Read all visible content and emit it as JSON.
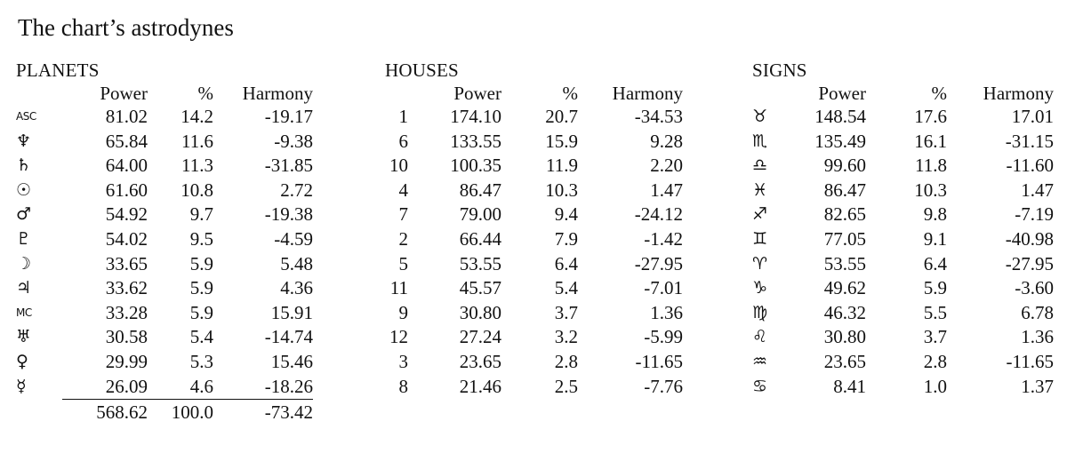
{
  "title": "The chart’s astrodynes",
  "columns": {
    "power": "Power",
    "percent": "%",
    "harmony": "Harmony"
  },
  "planets": {
    "heading": "PLANETS",
    "rows": [
      {
        "symbol": "ASC",
        "icon": "ascendant-icon",
        "power": "81.02",
        "percent": "14.2",
        "harmony": "-19.17"
      },
      {
        "symbol": "♆",
        "icon": "neptune-icon",
        "power": "65.84",
        "percent": "11.6",
        "harmony": "-9.38"
      },
      {
        "symbol": "♄",
        "icon": "saturn-icon",
        "power": "64.00",
        "percent": "11.3",
        "harmony": "-31.85"
      },
      {
        "symbol": "☉",
        "icon": "sun-icon",
        "power": "61.60",
        "percent": "10.8",
        "harmony": "2.72"
      },
      {
        "symbol": "♂",
        "icon": "mars-icon",
        "power": "54.92",
        "percent": "9.7",
        "harmony": "-19.38"
      },
      {
        "symbol": "♇",
        "icon": "pluto-icon",
        "power": "54.02",
        "percent": "9.5",
        "harmony": "-4.59"
      },
      {
        "symbol": "☽",
        "icon": "moon-icon",
        "power": "33.65",
        "percent": "5.9",
        "harmony": "5.48"
      },
      {
        "symbol": "♃",
        "icon": "jupiter-icon",
        "power": "33.62",
        "percent": "5.9",
        "harmony": "4.36"
      },
      {
        "symbol": "MC",
        "icon": "midheaven-icon",
        "power": "33.28",
        "percent": "5.9",
        "harmony": "15.91"
      },
      {
        "symbol": "♅",
        "icon": "uranus-icon",
        "power": "30.58",
        "percent": "5.4",
        "harmony": "-14.74"
      },
      {
        "symbol": "♀",
        "icon": "venus-icon",
        "power": "29.99",
        "percent": "5.3",
        "harmony": "15.46"
      },
      {
        "symbol": "☿",
        "icon": "mercury-icon",
        "power": "26.09",
        "percent": "4.6",
        "harmony": "-18.26"
      }
    ],
    "totals": {
      "power": "568.62",
      "percent": "100.0",
      "harmony": "-73.42"
    }
  },
  "houses": {
    "heading": "HOUSES",
    "rows": [
      {
        "house": "1",
        "power": "174.10",
        "percent": "20.7",
        "harmony": "-34.53"
      },
      {
        "house": "6",
        "power": "133.55",
        "percent": "15.9",
        "harmony": "9.28"
      },
      {
        "house": "10",
        "power": "100.35",
        "percent": "11.9",
        "harmony": "2.20"
      },
      {
        "house": "4",
        "power": "86.47",
        "percent": "10.3",
        "harmony": "1.47"
      },
      {
        "house": "7",
        "power": "79.00",
        "percent": "9.4",
        "harmony": "-24.12"
      },
      {
        "house": "2",
        "power": "66.44",
        "percent": "7.9",
        "harmony": "-1.42"
      },
      {
        "house": "5",
        "power": "53.55",
        "percent": "6.4",
        "harmony": "-27.95"
      },
      {
        "house": "11",
        "power": "45.57",
        "percent": "5.4",
        "harmony": "-7.01"
      },
      {
        "house": "9",
        "power": "30.80",
        "percent": "3.7",
        "harmony": "1.36"
      },
      {
        "house": "12",
        "power": "27.24",
        "percent": "3.2",
        "harmony": "-5.99"
      },
      {
        "house": "3",
        "power": "23.65",
        "percent": "2.8",
        "harmony": "-11.65"
      },
      {
        "house": "8",
        "power": "21.46",
        "percent": "2.5",
        "harmony": "-7.76"
      }
    ]
  },
  "signs": {
    "heading": "SIGNS",
    "rows": [
      {
        "symbol": "♉",
        "icon": "taurus-icon",
        "power": "148.54",
        "percent": "17.6",
        "harmony": "17.01"
      },
      {
        "symbol": "♏",
        "icon": "scorpio-icon",
        "power": "135.49",
        "percent": "16.1",
        "harmony": "-31.15"
      },
      {
        "symbol": "♎",
        "icon": "libra-icon",
        "power": "99.60",
        "percent": "11.8",
        "harmony": "-11.60"
      },
      {
        "symbol": "♓",
        "icon": "pisces-icon",
        "power": "86.47",
        "percent": "10.3",
        "harmony": "1.47"
      },
      {
        "symbol": "♐",
        "icon": "sagittarius-icon",
        "power": "82.65",
        "percent": "9.8",
        "harmony": "-7.19"
      },
      {
        "symbol": "♊",
        "icon": "gemini-icon",
        "power": "77.05",
        "percent": "9.1",
        "harmony": "-40.98"
      },
      {
        "symbol": "♈",
        "icon": "aries-icon",
        "power": "53.55",
        "percent": "6.4",
        "harmony": "-27.95"
      },
      {
        "symbol": "♑",
        "icon": "capricorn-icon",
        "power": "49.62",
        "percent": "5.9",
        "harmony": "-3.60"
      },
      {
        "symbol": "♍",
        "icon": "virgo-icon",
        "power": "46.32",
        "percent": "5.5",
        "harmony": "6.78"
      },
      {
        "symbol": "♌",
        "icon": "leo-icon",
        "power": "30.80",
        "percent": "3.7",
        "harmony": "1.36"
      },
      {
        "symbol": "♒",
        "icon": "aquarius-icon",
        "power": "23.65",
        "percent": "2.8",
        "harmony": "-11.65"
      },
      {
        "symbol": "♋",
        "icon": "cancer-icon",
        "power": "8.41",
        "percent": "1.0",
        "harmony": "1.37"
      }
    ]
  }
}
